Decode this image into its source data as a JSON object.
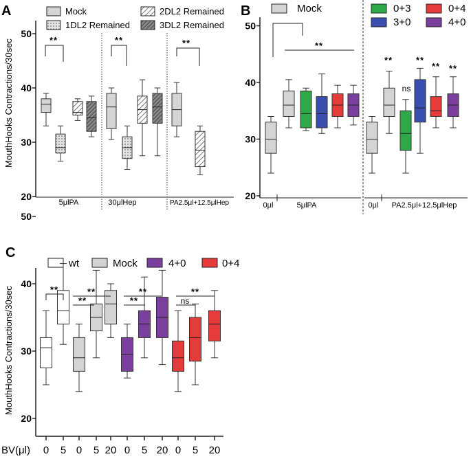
{
  "colors": {
    "mock": "#d4d4d4",
    "wt": "#ffffff",
    "c03": "#2fa84a",
    "c30": "#3a4fb0",
    "c04": "#e63b3b",
    "c40": "#7b3f9e",
    "axis": "#222222"
  },
  "chart_data": [
    {
      "panel": "A",
      "type": "box",
      "ylabel": "MouthHooks Contractions/30sec",
      "ylim": [
        20,
        55
      ],
      "yticks": [
        20,
        30,
        40,
        50
      ],
      "legend": [
        "Mock",
        "1DL2 Remained",
        "2DL2 Remained",
        "3DL2 Remained"
      ],
      "groups": [
        "5μlPA",
        "30μlHep",
        "PA2.5μl+12.5μlHep"
      ],
      "boxes": [
        {
          "group": 0,
          "series": "Mock",
          "min": 33,
          "q1": 35.5,
          "median": 37,
          "q3": 38,
          "max": 39
        },
        {
          "group": 0,
          "series": "1DL2 Remained",
          "min": 26.5,
          "q1": 28,
          "median": 29,
          "q3": 31.5,
          "max": 33
        },
        {
          "group": 0,
          "series": "2DL2 Remained",
          "min": 34,
          "q1": 35,
          "median": 35.5,
          "q3": 37.5,
          "max": 38
        },
        {
          "group": 0,
          "series": "3DL2 Remained",
          "min": 31,
          "q1": 32,
          "median": 34.5,
          "q3": 37.5,
          "max": 38.5
        },
        {
          "group": 1,
          "series": "Mock",
          "min": 30.5,
          "q1": 32.5,
          "median": 36.5,
          "q3": 39,
          "max": 40
        },
        {
          "group": 1,
          "series": "1DL2 Remained",
          "min": 25,
          "q1": 27,
          "median": 29,
          "q3": 31,
          "max": 33
        },
        {
          "group": 1,
          "series": "2DL2 Remained",
          "min": 27.5,
          "q1": 33.5,
          "median": 36,
          "q3": 38.5,
          "max": 41.5
        },
        {
          "group": 1,
          "series": "3DL2 Remained",
          "min": 27.5,
          "q1": 33.5,
          "median": 36.5,
          "q3": 39,
          "max": 40
        },
        {
          "group": 2,
          "series": "Mock",
          "min": 31,
          "q1": 33,
          "median": 36,
          "q3": 39,
          "max": 41
        },
        {
          "group": 2,
          "series": "2DL2 Remained",
          "min": 24,
          "q1": 25.5,
          "median": 28.5,
          "q3": 32,
          "max": 33
        }
      ],
      "significance": [
        {
          "label": "**",
          "from": 0,
          "to": 1
        },
        {
          "label": "**",
          "from": 4,
          "to": 5
        },
        {
          "label": "**",
          "from": 8,
          "to": 9
        }
      ]
    },
    {
      "panel": "B",
      "type": "box",
      "ylim": [
        20,
        55
      ],
      "yticks": [
        20,
        30,
        40,
        50
      ],
      "legend": [
        "Mock",
        "0+3",
        "0+4",
        "3+0",
        "4+0"
      ],
      "groups": [
        "0μl",
        "5μlPA",
        "0μl",
        "PA2.5μl+12.5μlHep"
      ],
      "boxes": [
        {
          "group": 0,
          "series": "Mock",
          "min": 24,
          "q1": 27.5,
          "median": 30,
          "q3": 33,
          "max": 34
        },
        {
          "group": 1,
          "series": "Mock",
          "min": 32,
          "q1": 34,
          "median": 36,
          "q3": 38.5,
          "max": 40.5
        },
        {
          "group": 1,
          "series": "0+3",
          "min": 31.5,
          "q1": 32,
          "median": 34.5,
          "q3": 38.5,
          "max": 39
        },
        {
          "group": 1,
          "series": "3+0",
          "min": 31,
          "q1": 32,
          "median": 34.5,
          "q3": 37.5,
          "max": 41.5
        },
        {
          "group": 1,
          "series": "0+4",
          "min": 32,
          "q1": 34,
          "median": 36,
          "q3": 38,
          "max": 39.5
        },
        {
          "group": 1,
          "series": "4+0",
          "min": 32.5,
          "q1": 34,
          "median": 36,
          "q3": 38,
          "max": 39.5
        },
        {
          "group": 2,
          "series": "Mock",
          "min": 24,
          "q1": 27.5,
          "median": 30,
          "q3": 33,
          "max": 34
        },
        {
          "group": 3,
          "series": "Mock",
          "min": 31,
          "q1": 34,
          "median": 36,
          "q3": 39,
          "max": 42
        },
        {
          "group": 3,
          "series": "0+3",
          "min": 24,
          "q1": 28,
          "median": 31,
          "q3": 35,
          "max": 37
        },
        {
          "group": 3,
          "series": "3+0",
          "min": 27.5,
          "q1": 33,
          "median": 35.5,
          "q3": 40.5,
          "max": 42.5
        },
        {
          "group": 3,
          "series": "0+4",
          "min": 32,
          "q1": 34,
          "median": 35,
          "q3": 37.5,
          "max": 41
        },
        {
          "group": 3,
          "series": "4+0",
          "min": 32,
          "q1": 34,
          "median": 36,
          "q3": 38,
          "max": 41
        }
      ],
      "annotations": [
        "**",
        "**",
        "ns",
        "**",
        "**",
        "**"
      ]
    },
    {
      "panel": "C",
      "type": "box",
      "ylabel": "MouthHooks Contractions/30sec",
      "xlabel": "BV(μl)",
      "ylim": [
        20,
        55
      ],
      "yticks": [
        20,
        30,
        40,
        50
      ],
      "legend": [
        "wt",
        "Mock",
        "4+0",
        "0+4"
      ],
      "categories": [
        "0",
        "5",
        "0",
        "5",
        "20",
        "0",
        "5",
        "20",
        "0",
        "5",
        "20"
      ],
      "boxes": [
        {
          "series": "wt",
          "bv": "0",
          "min": 25,
          "q1": 27.5,
          "median": 30.5,
          "q3": 32,
          "max": 36
        },
        {
          "series": "wt",
          "bv": "5",
          "min": 31,
          "q1": 34,
          "median": 36,
          "q3": 39,
          "max": 43
        },
        {
          "series": "Mock",
          "bv": "0",
          "min": 24,
          "q1": 27,
          "median": 29,
          "q3": 32,
          "max": 34
        },
        {
          "series": "Mock",
          "bv": "5",
          "min": 29,
          "q1": 33,
          "median": 35,
          "q3": 37,
          "max": 42
        },
        {
          "series": "Mock",
          "bv": "20",
          "min": 32,
          "q1": 34,
          "median": 37,
          "q3": 39,
          "max": 40
        },
        {
          "series": "4+0",
          "bv": "0",
          "min": 26,
          "q1": 27,
          "median": 29.5,
          "q3": 32,
          "max": 34
        },
        {
          "series": "4+0",
          "bv": "5",
          "min": 29,
          "q1": 32,
          "median": 34,
          "q3": 36,
          "max": 41
        },
        {
          "series": "4+0",
          "bv": "20",
          "min": 28,
          "q1": 32,
          "median": 35,
          "q3": 38,
          "max": 42
        },
        {
          "series": "0+4",
          "bv": "0",
          "min": 24,
          "q1": 27,
          "median": 29,
          "q3": 31.5,
          "max": 36
        },
        {
          "series": "0+4",
          "bv": "5",
          "min": 25,
          "q1": 28.5,
          "median": 32,
          "q3": 35,
          "max": 37
        },
        {
          "series": "0+4",
          "bv": "20",
          "min": 29,
          "q1": 31.5,
          "median": 34,
          "q3": 36,
          "max": 39
        }
      ],
      "significance": [
        "**",
        "**",
        "**",
        "**",
        "**",
        "ns",
        "**"
      ]
    }
  ]
}
